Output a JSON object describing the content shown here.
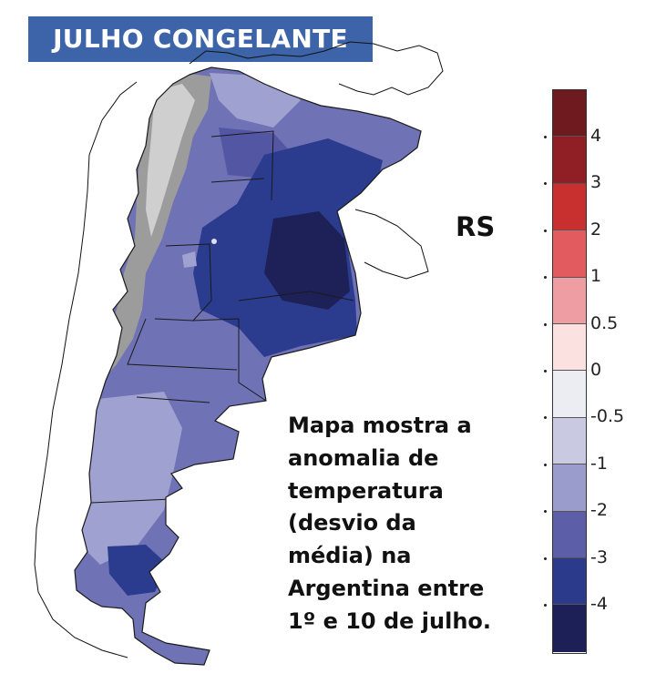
{
  "title": "JULHO CONGELANTE",
  "region_label": "RS",
  "caption_lines": [
    "Mapa mostra a",
    "anomalia de",
    "temperatura",
    "(desvio da",
    "média) na",
    "Argentina entre",
    "1º e 10 de julho."
  ],
  "legend": {
    "tick_labels": [
      "4",
      "3",
      "2",
      "1",
      "0.5",
      "0",
      "-0.5",
      "-1",
      "-2",
      "-3",
      "-4"
    ],
    "bin_colors": [
      "#6e1a1f",
      "#8f1f24",
      "#c8302f",
      "#e25c5f",
      "#ee9ea2",
      "#fbe1df",
      "#ececf3",
      "#c9c9e2",
      "#9a9ccc",
      "#5c5fa8",
      "#2c3a8c",
      "#1d2057"
    ]
  },
  "colors": {
    "banner": "#3d63a8",
    "andes_relief": "#9c9c9c"
  },
  "icons": [
    "region-marker-dot"
  ]
}
